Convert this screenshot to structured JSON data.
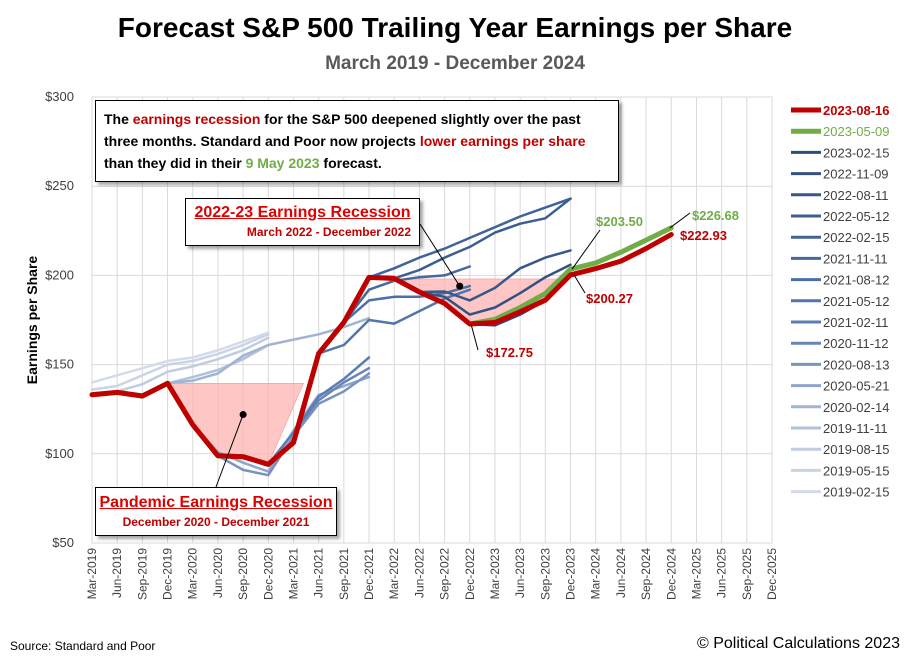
{
  "header": {
    "title": "Forecast S&P 500 Trailing Year Earnings per Share",
    "subtitle": "March 2019 - December 2024"
  },
  "footer": {
    "source": "Source: Standard  and  Poor",
    "copyright": "© Political Calculations 2023"
  },
  "notes": {
    "main": {
      "p1": "The ",
      "p2": "earnings recession",
      "p3": " for the S&P 500 deepened slightly over the past three months.  Standard and Poor now projects ",
      "p4": "lower earnings per share",
      "p5": " than they did in their ",
      "p6": "9 May 2023",
      "p7": " forecast."
    },
    "recession_2022": {
      "title": "2022-23 Earnings Recession",
      "subtitle": "March 2022 - December 2022"
    },
    "recession_2020": {
      "title": "Pandemic Earnings Recession",
      "subtitle": "December 2020 - December 2021"
    }
  },
  "colors": {
    "latest": "#c00000",
    "prior": "#70ad47",
    "recession_fill": "#ffb3b3"
  },
  "chart_data": {
    "type": "line",
    "title": "Forecast S&P 500 Trailing Year Earnings per Share",
    "subtitle": "March 2019 - December 2024",
    "ylabel": "Earnings per Share",
    "xlabel": "",
    "ylim": [
      50,
      300
    ],
    "y_ticks": [
      "$50",
      "$100",
      "$150",
      "$200",
      "$250",
      "$300"
    ],
    "y_tick_values": [
      50,
      100,
      150,
      200,
      250,
      300
    ],
    "x_labels": [
      "Mar-2019",
      "Jun-2019",
      "Sep-2019",
      "Dec-2019",
      "Mar-2020",
      "Jun-2020",
      "Sep-2020",
      "Dec-2020",
      "Mar-2021",
      "Jun-2021",
      "Sep-2021",
      "Dec-2021",
      "Mar-2022",
      "Jun-2022",
      "Sep-2022",
      "Dec-2022",
      "Mar-2023",
      "Jun-2023",
      "Sep-2023",
      "Dec-2023",
      "Mar-2024",
      "Jun-2024",
      "Sep-2024",
      "Dec-2024",
      "Mar-2025",
      "Jun-2025",
      "Sep-2025",
      "Dec-2025"
    ],
    "grid": true,
    "legend_position": "right",
    "series": [
      {
        "name": "2023-08-16",
        "color": "#c00000",
        "width": 5,
        "values": [
          133.1,
          134.4,
          132.4,
          139.5,
          116.3,
          98.9,
          98.4,
          94.1,
          106.3,
          156.3,
          173.7,
          198.9,
          198.3,
          190.7,
          184.3,
          172.75,
          173.6,
          179.6,
          186.1,
          200.27,
          203.8,
          208.0,
          215.1,
          222.93
        ]
      },
      {
        "name": "2023-05-09",
        "color": "#70ad47",
        "width": 5,
        "values": [
          133.1,
          134.4,
          132.4,
          139.5,
          116.3,
          98.9,
          98.4,
          94.1,
          106.3,
          156.3,
          173.7,
          198.9,
          198.3,
          190.7,
          184.3,
          172.75,
          175.4,
          182.0,
          189.8,
          203.5,
          207.0,
          213.0,
          219.8,
          226.68
        ]
      },
      {
        "name": "2023-02-15",
        "color": "#2e4d7b",
        "width": 2.5,
        "values": [
          133.1,
          134.4,
          132.4,
          139.5,
          116.3,
          98.9,
          98.4,
          94.1,
          106.3,
          156.3,
          173.7,
          198.9,
          198.3,
          190.7,
          184.3,
          172.75,
          172.0,
          178.0,
          186.0,
          199.5
        ]
      },
      {
        "name": "2022-11-09",
        "color": "#325283",
        "width": 2.5,
        "values": [
          133.1,
          134.4,
          132.4,
          139.5,
          116.3,
          98.9,
          98.4,
          94.1,
          106.3,
          156.3,
          173.7,
          198.9,
          198.3,
          190.7,
          188.0,
          178.0,
          182.0,
          190.0,
          199.0,
          206.0
        ]
      },
      {
        "name": "2022-08-11",
        "color": "#36578a",
        "width": 2.5,
        "values": [
          133.1,
          134.4,
          132.4,
          139.5,
          116.3,
          98.9,
          98.4,
          94.1,
          106.3,
          156.3,
          173.7,
          198.9,
          198.3,
          190.7,
          191.0,
          186.0,
          193.0,
          204.0,
          210.0,
          214.0
        ]
      },
      {
        "name": "2022-05-12",
        "color": "#3b5d92",
        "width": 2.5,
        "values": [
          133.1,
          134.4,
          132.4,
          139.5,
          116.3,
          98.9,
          98.4,
          94.1,
          106.3,
          156.3,
          173.7,
          198.9,
          198.3,
          203.0,
          210.0,
          216.0,
          224.0,
          229.0,
          232.0,
          243.0
        ]
      },
      {
        "name": "2022-02-15",
        "color": "#416399",
        "width": 2.5,
        "values": [
          133.1,
          134.4,
          132.4,
          139.5,
          116.3,
          98.9,
          98.4,
          94.1,
          106.3,
          156.3,
          173.7,
          198.9,
          204.0,
          210.0,
          215.0,
          221.0,
          227.0,
          233.0,
          238.0,
          243.0
        ]
      },
      {
        "name": "2021-11-11",
        "color": "#4669a0",
        "width": 2.5,
        "values": [
          133.1,
          134.4,
          132.4,
          139.5,
          116.3,
          98.9,
          98.4,
          94.1,
          106.3,
          156.3,
          173.7,
          192.0,
          197.0,
          199.0,
          200.0,
          205.0
        ]
      },
      {
        "name": "2021-08-12",
        "color": "#4c6fa7",
        "width": 2.5,
        "values": [
          133.1,
          134.4,
          132.4,
          139.5,
          116.3,
          98.9,
          98.4,
          94.1,
          106.3,
          156.3,
          173.7,
          186.0,
          188.0,
          188.0,
          190.0,
          194.0
        ]
      },
      {
        "name": "2021-05-12",
        "color": "#5275ad",
        "width": 2.5,
        "values": [
          133.1,
          134.4,
          132.4,
          139.5,
          116.3,
          98.9,
          98.4,
          94.1,
          106.3,
          156.3,
          161.0,
          175.0,
          173.0,
          180.0,
          187.0,
          192.0
        ]
      },
      {
        "name": "2021-02-11",
        "color": "#5b7db3",
        "width": 2.5,
        "values": [
          133.1,
          134.4,
          132.4,
          139.5,
          116.3,
          98.9,
          98.4,
          94.1,
          112.0,
          132.0,
          142.0,
          154.0
        ]
      },
      {
        "name": "2020-11-12",
        "color": "#6885b8",
        "width": 2.5,
        "values": [
          133.1,
          134.4,
          132.4,
          139.5,
          116.3,
          98.9,
          98.4,
          94.1,
          112.0,
          130.0,
          140.0,
          148.0
        ]
      },
      {
        "name": "2020-08-13",
        "color": "#7b92c0",
        "width": 2.5,
        "values": [
          133.1,
          134.4,
          132.4,
          139.5,
          116.3,
          98.9,
          91.0,
          88.0,
          110.0,
          128.0,
          135.0,
          145.0
        ]
      },
      {
        "name": "2020-05-21",
        "color": "#8fa5cb",
        "width": 2.5,
        "values": [
          133.1,
          134.4,
          132.4,
          139.5,
          116.3,
          101.0,
          95.0,
          90.0,
          113.0,
          133.0,
          138.0,
          143.0
        ]
      },
      {
        "name": "2020-02-14",
        "color": "#a2b4d4",
        "width": 2.5,
        "values": [
          133.1,
          134.4,
          132.4,
          139.5,
          141.0,
          145.0,
          155.0,
          161.0,
          164.0,
          167.0,
          171.0,
          176.0
        ]
      },
      {
        "name": "2019-11-11",
        "color": "#b2c1db",
        "width": 2.5,
        "values": [
          133.1,
          134.4,
          132.4,
          139.5,
          143.0,
          147.0,
          153.0,
          161.0
        ]
      },
      {
        "name": "2019-08-15",
        "color": "#c0cce2",
        "width": 2.5,
        "values": [
          133.1,
          135.0,
          139.0,
          146.0,
          149.0,
          153.0,
          158.0,
          165.0
        ]
      },
      {
        "name": "2019-05-15",
        "color": "#cad4e7",
        "width": 2.5,
        "values": [
          136.0,
          138.0,
          144.0,
          150.0,
          152.0,
          156.0,
          161.0,
          167.0
        ]
      },
      {
        "name": "2019-02-15",
        "color": "#d3dbeb",
        "width": 2.5,
        "values": [
          140.0,
          144.0,
          148.0,
          152.0,
          154.0,
          158.0,
          163.0,
          168.0
        ]
      }
    ],
    "annotations": [
      {
        "text": "$203.50",
        "color": "#70ad47"
      },
      {
        "text": "$226.68",
        "color": "#70ad47"
      },
      {
        "text": "$222.93",
        "color": "#c00000"
      },
      {
        "text": "$200.27",
        "color": "#c00000"
      },
      {
        "text": "$172.75",
        "color": "#c00000"
      }
    ]
  }
}
